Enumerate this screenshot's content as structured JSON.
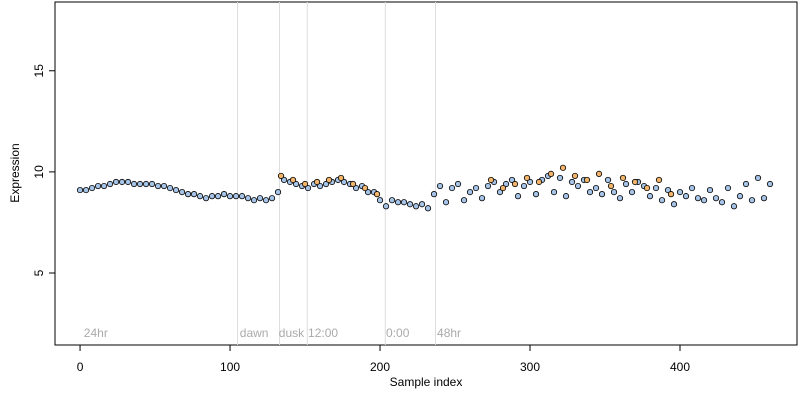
{
  "chart_data": {
    "type": "scatter",
    "x_label": "Sample index",
    "y_label": "Expression",
    "xlim": [
      -16.7,
      478
    ],
    "ylim": [
      1.44,
      18.4
    ],
    "xticks": [
      0,
      100,
      200,
      300,
      400
    ],
    "yticks": [
      5,
      10,
      15
    ],
    "vlines": [
      105,
      133,
      151.5,
      203.5,
      237
    ],
    "annotations": [
      {
        "label": "24hr",
        "x": 2.5
      },
      {
        "label": "dawn",
        "x": 106.5
      },
      {
        "label": "dusk",
        "x": 132.5
      },
      {
        "label": "12:00",
        "x": 152
      },
      {
        "label": "0:00",
        "x": 204
      },
      {
        "label": "48hr",
        "x": 238
      }
    ],
    "series": [
      {
        "color": "#a6c4e8",
        "x": [
          0,
          4,
          8,
          12,
          16,
          20,
          24,
          28,
          32,
          36,
          40,
          44,
          48,
          52,
          56,
          60,
          64,
          68,
          72,
          76,
          80,
          84,
          88,
          92,
          96,
          100,
          104,
          108,
          112,
          116,
          120,
          124,
          128,
          132,
          136,
          140,
          144,
          148,
          152,
          156,
          160,
          164,
          168,
          172,
          176,
          180,
          184,
          188,
          192,
          196,
          200,
          204,
          208,
          212,
          216,
          220,
          224,
          228,
          232,
          236,
          240,
          244,
          248,
          252,
          256,
          260,
          264,
          268,
          272,
          276,
          280,
          284,
          288,
          292,
          296,
          300,
          304,
          308,
          312,
          316,
          320,
          324,
          328,
          332,
          336,
          340,
          344,
          348,
          352,
          356,
          360,
          364,
          368,
          372,
          376,
          380,
          384,
          388,
          392,
          396,
          400,
          404,
          408,
          412,
          416,
          420,
          424,
          428,
          432,
          436,
          440,
          444,
          448,
          452,
          456,
          460
        ],
        "values": [
          9.1,
          9.1,
          9.2,
          9.3,
          9.3,
          9.4,
          9.5,
          9.5,
          9.5,
          9.4,
          9.4,
          9.4,
          9.4,
          9.3,
          9.3,
          9.2,
          9.1,
          9.0,
          8.9,
          8.9,
          8.8,
          8.7,
          8.8,
          8.8,
          8.9,
          8.8,
          8.8,
          8.8,
          8.7,
          8.6,
          8.7,
          8.6,
          8.7,
          9.0,
          9.6,
          9.5,
          9.4,
          9.3,
          9.2,
          9.4,
          9.3,
          9.4,
          9.5,
          9.6,
          9.5,
          9.4,
          9.2,
          9.3,
          9.0,
          9.0,
          8.6,
          8.3,
          8.6,
          8.5,
          8.5,
          8.4,
          8.3,
          8.4,
          8.2,
          8.9,
          9.3,
          8.5,
          9.2,
          9.4,
          8.6,
          9.0,
          9.2,
          8.7,
          9.3,
          9.5,
          9.0,
          9.4,
          9.6,
          8.8,
          9.3,
          9.5,
          8.9,
          9.6,
          9.8,
          9.0,
          9.7,
          8.8,
          9.5,
          9.3,
          9.6,
          9.0,
          9.2,
          8.9,
          9.6,
          9.0,
          8.7,
          9.4,
          9.0,
          9.5,
          9.3,
          8.8,
          9.2,
          8.6,
          9.1,
          8.4,
          9.0,
          8.8,
          9.2,
          8.7,
          8.6,
          9.1,
          8.7,
          8.5,
          9.2,
          8.3,
          8.8,
          9.4,
          8.6,
          9.7,
          8.7,
          9.4
        ]
      },
      {
        "color": "#f2b56b",
        "x": [
          134,
          142,
          150,
          158,
          166,
          174,
          182,
          190,
          198,
          274,
          282,
          290,
          298,
          306,
          314,
          322,
          330,
          338,
          346,
          354,
          362,
          370,
          378,
          386,
          394
        ],
        "values": [
          9.8,
          9.6,
          9.4,
          9.5,
          9.6,
          9.7,
          9.4,
          9.2,
          8.9,
          9.6,
          9.2,
          9.4,
          9.7,
          9.5,
          9.9,
          10.2,
          9.8,
          9.6,
          9.9,
          9.3,
          9.7,
          9.5,
          9.2,
          9.6,
          8.9
        ]
      }
    ]
  }
}
